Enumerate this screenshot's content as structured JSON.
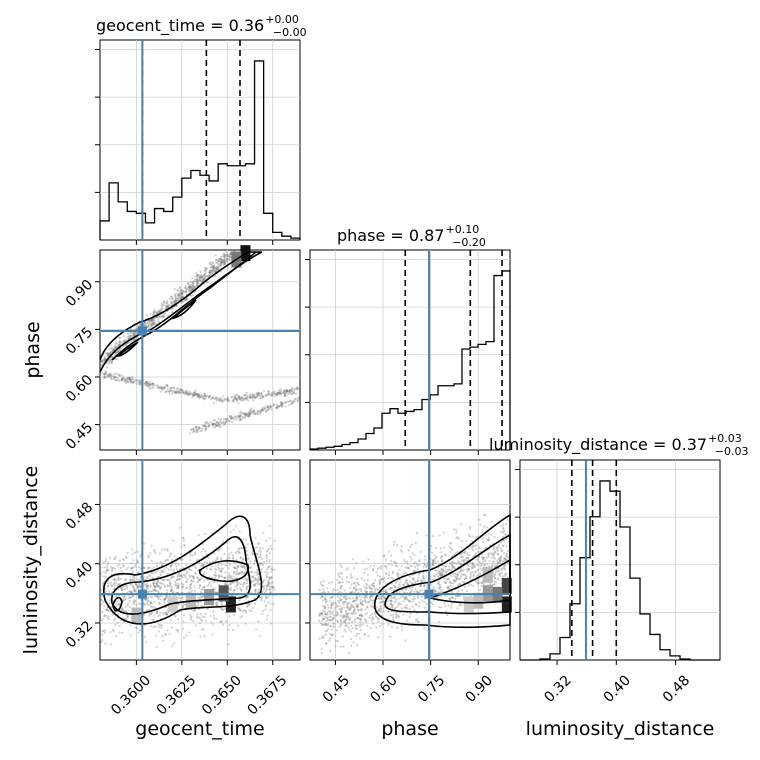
{
  "chart_data": {
    "type": "corner",
    "truth_color": "#4682b4",
    "parameters": [
      {
        "name": "geocent_time",
        "truth": 0.36033,
        "range": [
          0.358,
          0.369
        ],
        "ticks": [
          0.36,
          0.3625,
          0.365,
          0.3675
        ],
        "tick_labels": [
          "0.3600",
          "0.3625",
          "0.3650",
          "0.3675"
        ],
        "title_main": "geocent_time = 0.36",
        "title_sup": "+0.00",
        "title_sub": "−0.00",
        "quantiles": [
          0.36033,
          0.36385,
          0.3657
        ],
        "hist": [
          20,
          60,
          40,
          30,
          28,
          18,
          33,
          30,
          45,
          65,
          73,
          68,
          62,
          80,
          78,
          78,
          80,
          188,
          28,
          8,
          4,
          2
        ]
      },
      {
        "name": "phase",
        "truth": 0.745,
        "range": [
          0.37,
          1.0
        ],
        "ticks": [
          0.45,
          0.6,
          0.75,
          0.9
        ],
        "tick_labels": [
          "0.45",
          "0.60",
          "0.75",
          "0.90"
        ],
        "title_main": "phase = 0.87",
        "title_sup": "+0.10",
        "title_sub": "−0.20",
        "quantiles": [
          0.67,
          0.875,
          0.975
        ],
        "hist": [
          1,
          2,
          3,
          4,
          6,
          8,
          12,
          18,
          24,
          40,
          45,
          40,
          42,
          44,
          55,
          60,
          70,
          70,
          72,
          110,
          112,
          115,
          118,
          190,
          195
        ]
      },
      {
        "name": "luminosity_distance",
        "truth": 0.359,
        "range": [
          0.27,
          0.54
        ],
        "ticks": [
          0.32,
          0.4,
          0.48
        ],
        "tick_labels": [
          "0.32",
          "0.40",
          "0.48"
        ],
        "title_main": "luminosity_distance = 0.37",
        "title_sup": "+0.03",
        "title_sub": "−0.03",
        "quantiles": [
          0.34,
          0.368,
          0.4
        ],
        "hist": [
          0,
          0,
          1,
          6,
          22,
          55,
          100,
          140,
          175,
          165,
          130,
          80,
          45,
          25,
          10,
          4,
          1,
          0,
          0,
          0
        ]
      }
    ]
  }
}
